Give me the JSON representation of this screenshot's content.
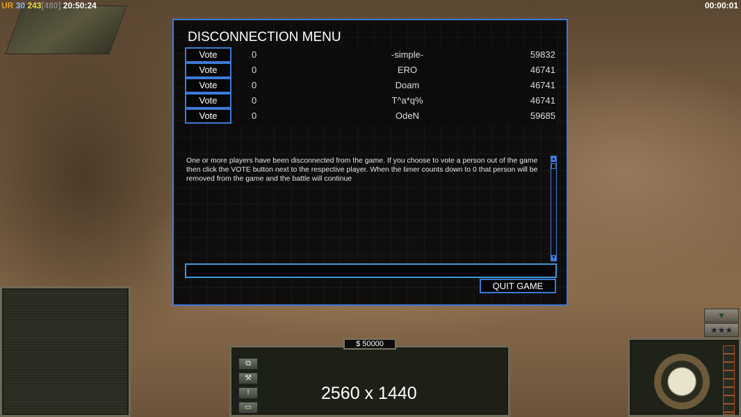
{
  "hud": {
    "faction": "UR",
    "value1": "30",
    "value2": "243",
    "bracket": "[480]",
    "clock": "20:50:24",
    "timer": "00:00:01"
  },
  "dialog": {
    "title": "DISCONNECTION MENU",
    "players": [
      {
        "vote": "Vote",
        "count": "0",
        "name": "-simple-",
        "ping": "59832"
      },
      {
        "vote": "Vote",
        "count": "0",
        "name": "ERO",
        "ping": "46741"
      },
      {
        "vote": "Vote",
        "count": "0",
        "name": "Doam",
        "ping": "46741"
      },
      {
        "vote": "Vote",
        "count": "0",
        "name": "T^a*q%",
        "ping": "46741"
      },
      {
        "vote": "Vote",
        "count": "0",
        "name": "OdeN",
        "ping": "59685"
      }
    ],
    "message": "One or more players have been disconnected from the game.  If you choose to vote a person out of the game then click the VOTE button next to the respective player. When the timer counts down to 0 that person will be removed from the game and the battle will continue",
    "chat_value": "",
    "quit_label": "QUIT GAME"
  },
  "money": "$ 50000",
  "overlay": "2560 x 1440",
  "colors": {
    "accent": "#3c7bd8",
    "hud_yellow": "#f0e040"
  }
}
